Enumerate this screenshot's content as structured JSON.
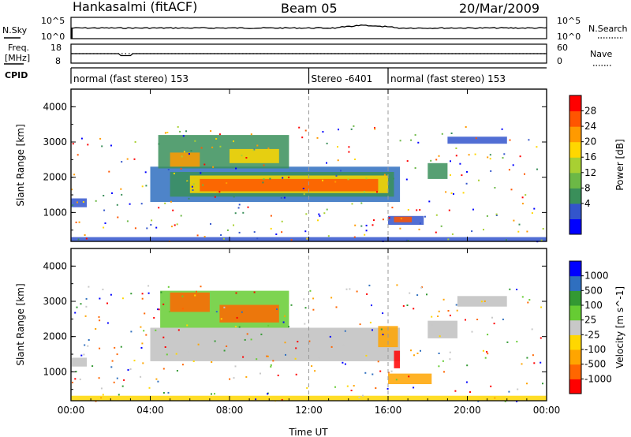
{
  "header": {
    "station": "Hankasalmi (fitACF)",
    "beam": "Beam 05",
    "date": "20/Mar/2009"
  },
  "side_labels": {
    "nsky": "N.Sky",
    "nsearch": "N.Search",
    "freq_line1": "Freq.",
    "freq_line2": "[MHz]",
    "nave": "Nave",
    "cpid": "CPID"
  },
  "nsky_panel": {
    "left_ticks": [
      "10^5",
      "10^0"
    ],
    "right_ticks": [
      "10^5",
      "10^0"
    ]
  },
  "freq_panel": {
    "left_ticks": [
      "18",
      "8"
    ],
    "right_ticks": [
      "60",
      "0"
    ]
  },
  "cpid_segments": [
    {
      "label": "normal (fast stereo) 153",
      "start_hour": 0
    },
    {
      "label": "Stereo -6401",
      "start_hour": 12
    },
    {
      "label": "normal (fast stereo) 153",
      "start_hour": 16
    }
  ],
  "x_axis": {
    "ticks": [
      "00:00",
      "04:00",
      "08:00",
      "12:00",
      "16:00",
      "20:00",
      "00:00"
    ],
    "label": "Time UT"
  },
  "chart_data": [
    {
      "type": "heatmap",
      "quantity": "Power",
      "ylabel": "Slant Range [km]",
      "ylim": [
        180,
        4500
      ],
      "yticks": [
        1000,
        2000,
        3000,
        4000
      ],
      "xlim_hours": [
        0,
        24
      ],
      "colorbar": {
        "label": "Power [dB]",
        "ticks": [
          "28",
          "24",
          "20",
          "16",
          "12",
          "8",
          "4"
        ],
        "colors": [
          "#0000ff",
          "#3355cc",
          "#3a8f5a",
          "#6cb846",
          "#a8d032",
          "#ffd700",
          "#ff9a00",
          "#ff5500",
          "#ff0000"
        ]
      },
      "bands": [
        {
          "x0": 4.0,
          "x1": 16.6,
          "y0": 1300,
          "y1": 2300,
          "color": "#2f6fbf"
        },
        {
          "x0": 5.0,
          "x1": 16.3,
          "y0": 1450,
          "y1": 2150,
          "color": "#3a8f5a"
        },
        {
          "x0": 6.0,
          "x1": 16.0,
          "y0": 1550,
          "y1": 2050,
          "color": "#ffd700"
        },
        {
          "x0": 6.5,
          "x1": 15.5,
          "y0": 1600,
          "y1": 1950,
          "color": "#ff5500"
        },
        {
          "x0": 4.4,
          "x1": 11.0,
          "y0": 2250,
          "y1": 3200,
          "color": "#3a8f5a"
        },
        {
          "x0": 5.0,
          "x1": 6.5,
          "y0": 2300,
          "y1": 2700,
          "color": "#ff9a00"
        },
        {
          "x0": 8.0,
          "x1": 10.5,
          "y0": 2400,
          "y1": 2800,
          "color": "#ffd700"
        },
        {
          "x0": 16.0,
          "x1": 17.8,
          "y0": 650,
          "y1": 900,
          "color": "#3355cc"
        },
        {
          "x0": 16.3,
          "x1": 17.2,
          "y0": 720,
          "y1": 880,
          "color": "#ff5500"
        },
        {
          "x0": 0.0,
          "x1": 24.0,
          "y0": 180,
          "y1": 300,
          "color": "#3355cc"
        },
        {
          "x0": 18.0,
          "x1": 19.0,
          "y0": 1950,
          "y1": 2400,
          "color": "#3a8f5a"
        },
        {
          "x0": 19.0,
          "x1": 22.0,
          "y0": 2950,
          "y1": 3150,
          "color": "#3355cc"
        },
        {
          "x0": 0.0,
          "x1": 0.8,
          "y0": 1150,
          "y1": 1400,
          "color": "#3355cc"
        }
      ]
    },
    {
      "type": "heatmap",
      "quantity": "Velocity",
      "ylabel": "Slant Range [km]",
      "ylim": [
        180,
        4500
      ],
      "yticks": [
        1000,
        2000,
        3000,
        4000
      ],
      "xlim_hours": [
        0,
        24
      ],
      "colorbar": {
        "label": "Velocity [m s^-1]",
        "ticks": [
          "1000",
          "500",
          "100",
          "25",
          "-25",
          "-100",
          "-500",
          "-1000"
        ],
        "colors": [
          "#ff0000",
          "#ff6600",
          "#ffa500",
          "#ffd700",
          "#c8c8c8",
          "#66cc33",
          "#339933",
          "#2f6fbf",
          "#0000ff"
        ]
      },
      "bands": [
        {
          "x0": 4.0,
          "x1": 16.6,
          "y0": 1300,
          "y1": 2250,
          "color": "#c0c0c0"
        },
        {
          "x0": 4.5,
          "x1": 11.0,
          "y0": 2250,
          "y1": 3300,
          "color": "#66cc33"
        },
        {
          "x0": 5.0,
          "x1": 7.0,
          "y0": 2700,
          "y1": 3250,
          "color": "#ff6600"
        },
        {
          "x0": 7.5,
          "x1": 10.5,
          "y0": 2400,
          "y1": 2900,
          "color": "#ff6600"
        },
        {
          "x0": 15.5,
          "x1": 16.5,
          "y0": 1700,
          "y1": 2300,
          "color": "#ffa500"
        },
        {
          "x0": 16.0,
          "x1": 18.2,
          "y0": 650,
          "y1": 950,
          "color": "#ffa500"
        },
        {
          "x0": 16.3,
          "x1": 16.6,
          "y0": 1100,
          "y1": 1600,
          "color": "#ff0000"
        },
        {
          "x0": 18.0,
          "x1": 19.5,
          "y0": 1950,
          "y1": 2450,
          "color": "#c0c0c0"
        },
        {
          "x0": 19.5,
          "x1": 22.0,
          "y0": 2850,
          "y1": 3150,
          "color": "#c0c0c0"
        },
        {
          "x0": 0.0,
          "x1": 24.0,
          "y0": 180,
          "y1": 320,
          "color": "#ffd700"
        },
        {
          "x0": 0.0,
          "x1": 0.8,
          "y0": 1150,
          "y1": 1400,
          "color": "#c0c0c0"
        }
      ]
    }
  ]
}
